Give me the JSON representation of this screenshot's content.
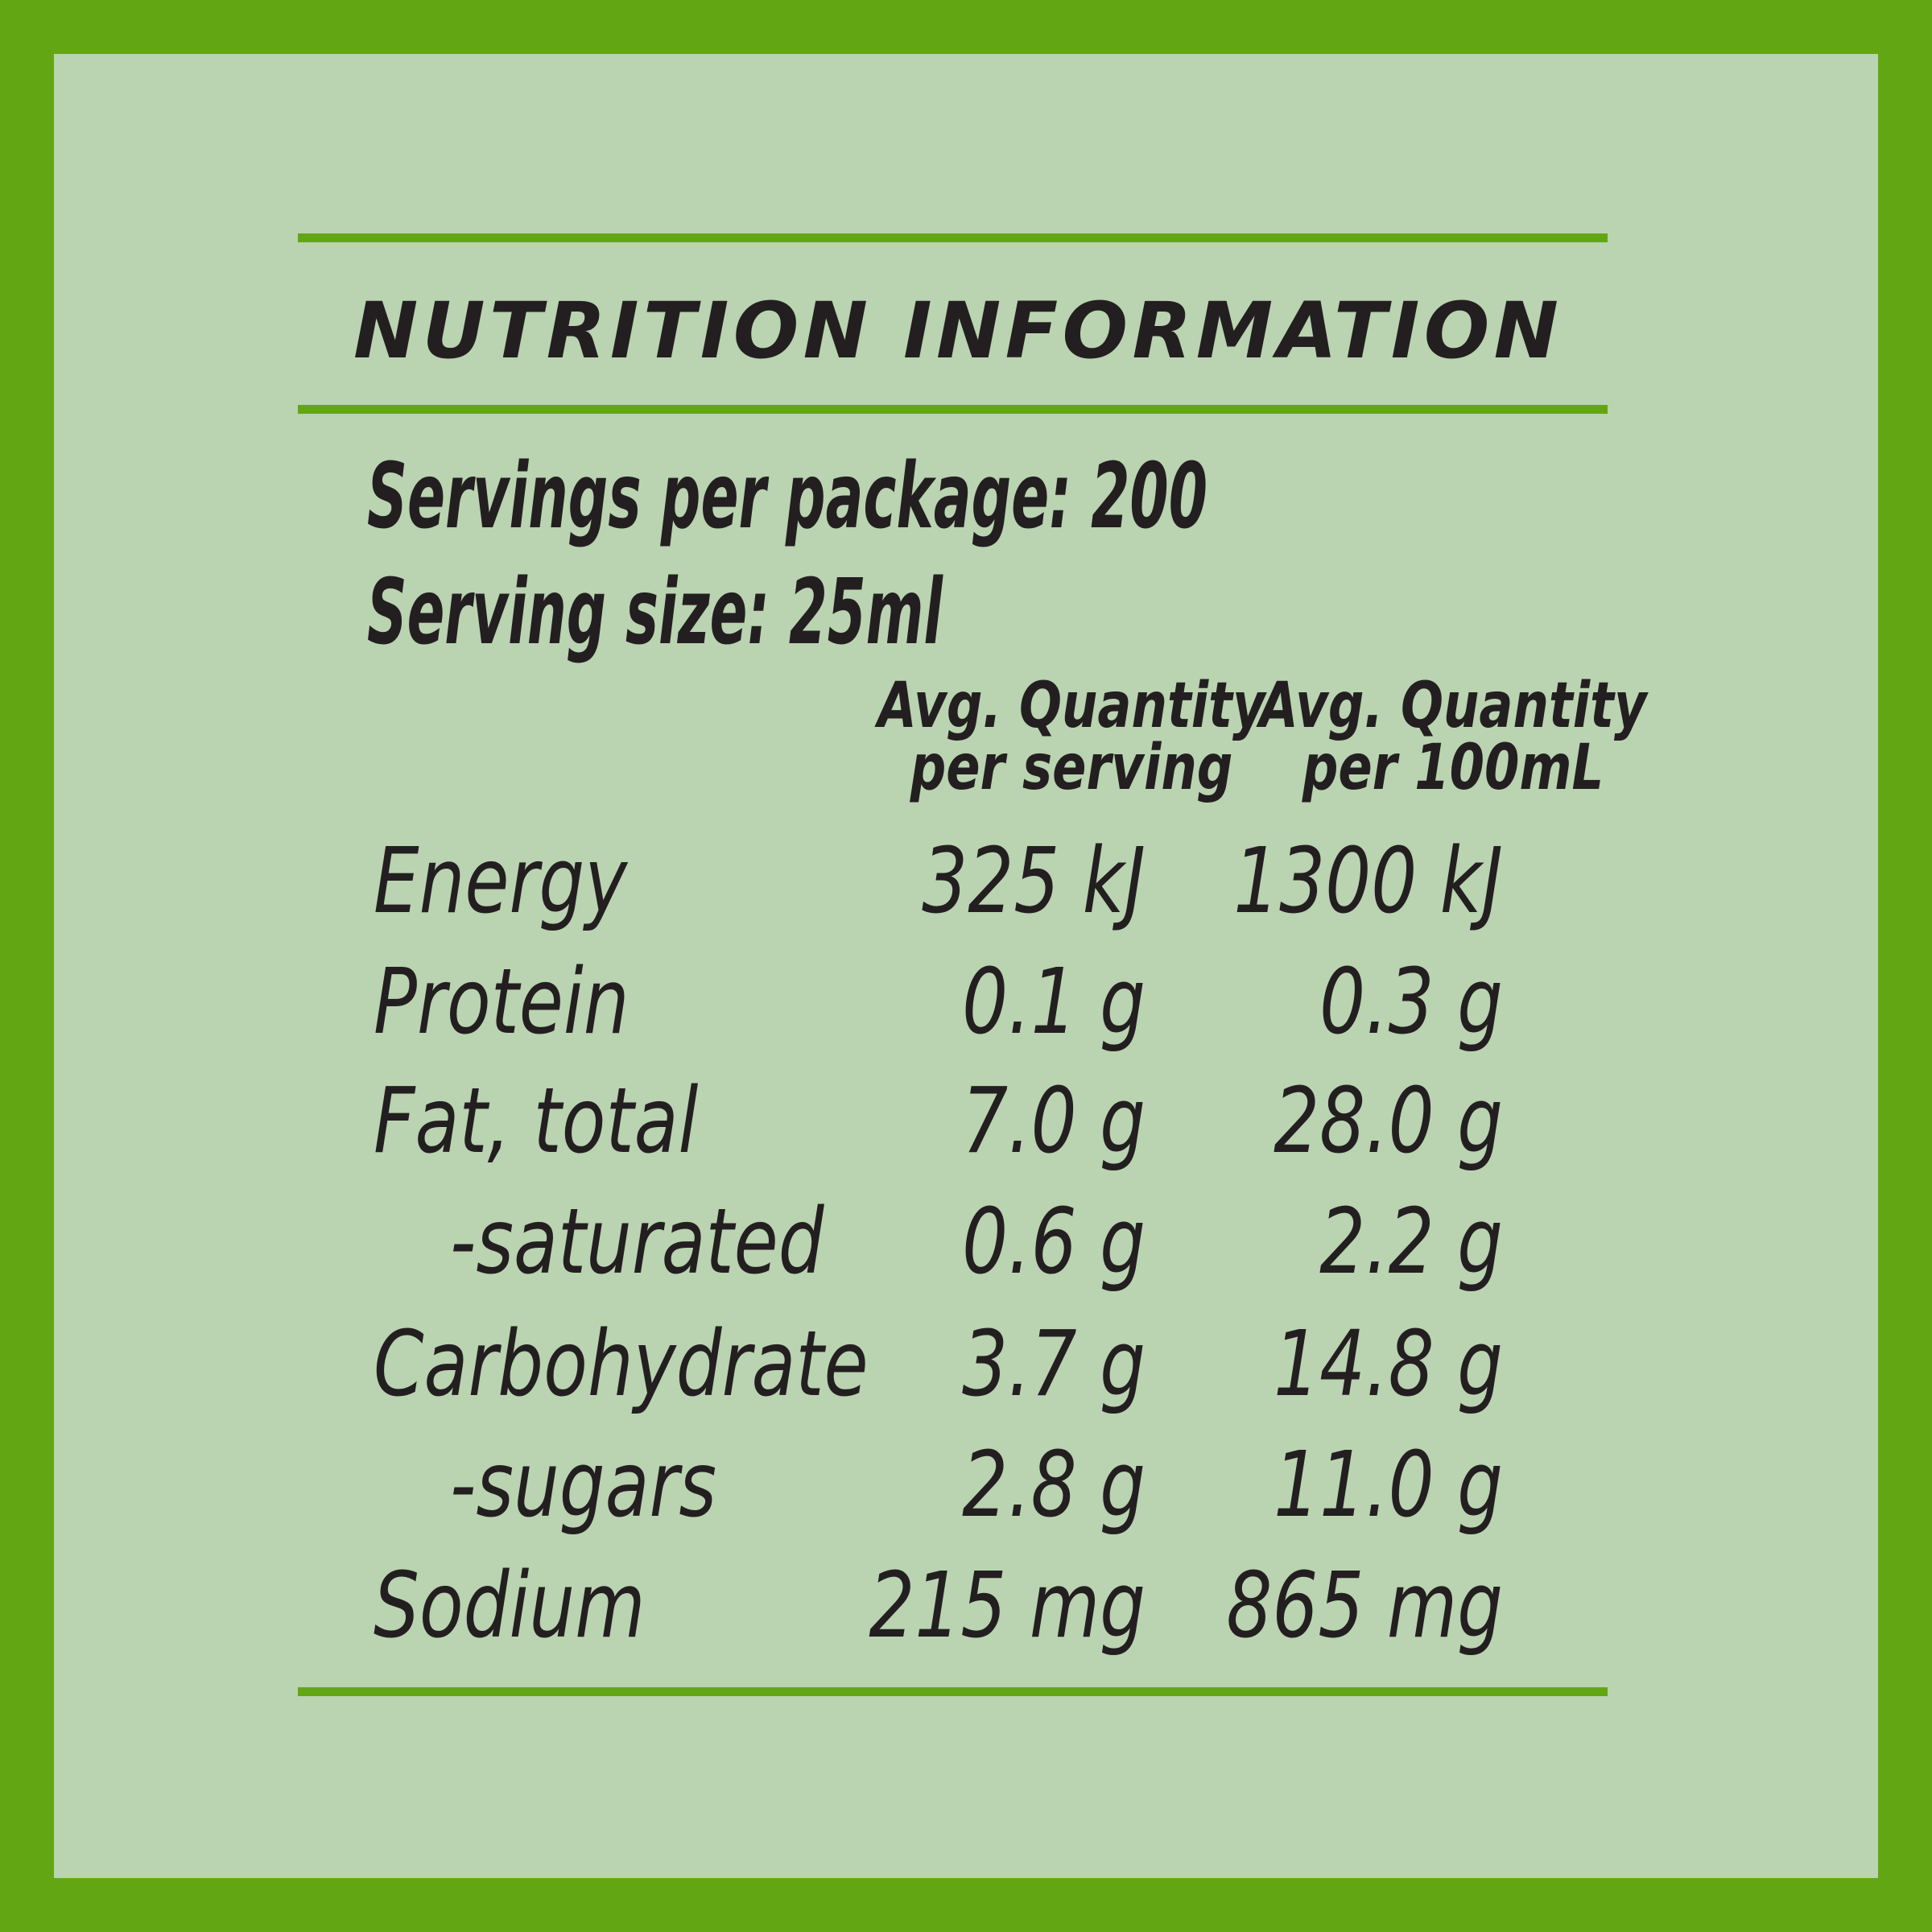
{
  "title": "NUTRITION INFORMATION",
  "servings_per_package": "Servings per package: 200",
  "serving_size": "Serving size: 25ml",
  "table": {
    "headers": [
      [
        "Avg. Quantity",
        "per serving"
      ],
      [
        "Avg. Quantity",
        "per 100mL"
      ]
    ],
    "rows": [
      [
        "Energy",
        "325 kJ",
        "1300 kJ"
      ],
      [
        "Protein",
        "0.1 g",
        "0.3 g"
      ],
      [
        "Fat, total",
        "7.0 g",
        "28.0 g"
      ],
      [
        "-saturated",
        "0.6 g",
        "2.2 g"
      ],
      [
        "Carbohydrate",
        "3.7 g",
        "14.8 g"
      ],
      [
        "-sugars",
        "2.8 g",
        "11.0 g"
      ],
      [
        "Sodium",
        "215 mg",
        "865 mg"
      ]
    ]
  }
}
